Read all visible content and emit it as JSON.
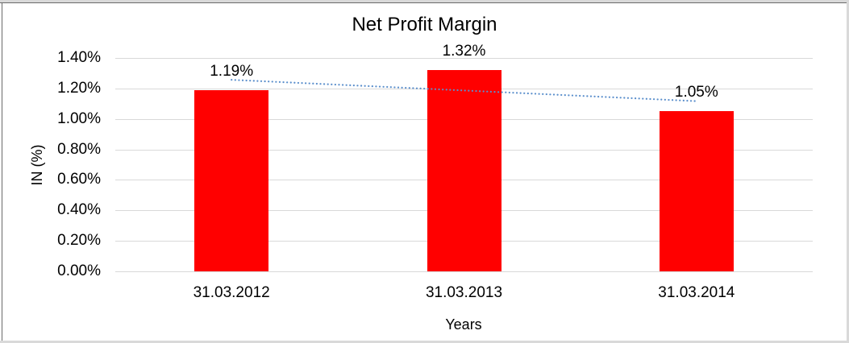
{
  "chart_data": {
    "type": "bar",
    "title": "Net Profit Margin",
    "xlabel": "Years",
    "ylabel": "IN (%)",
    "categories": [
      "31.03.2012",
      "31.03.2013",
      "31.03.2014"
    ],
    "series": [
      {
        "name": "Net Profit Margin",
        "values": [
          1.19,
          1.32,
          1.05
        ]
      }
    ],
    "data_labels": [
      "1.19%",
      "1.32%",
      "1.05%"
    ],
    "yticks": [
      "1.40%",
      "1.20%",
      "1.00%",
      "0.80%",
      "0.60%",
      "0.40%",
      "0.20%",
      "0.00%"
    ],
    "ylim": [
      0,
      1.4
    ],
    "grid": "horizontal",
    "legend": "none",
    "trendline": {
      "type": "linear",
      "style": "dotted"
    },
    "colors": {
      "bar": "#ff0000",
      "trendline": "#5b8fcc",
      "gridline": "#d9d9d9",
      "text": "#000000",
      "background": "#ffffff",
      "frame_light": "#d9d9d9",
      "frame_dark": "#6a6a6a"
    }
  }
}
